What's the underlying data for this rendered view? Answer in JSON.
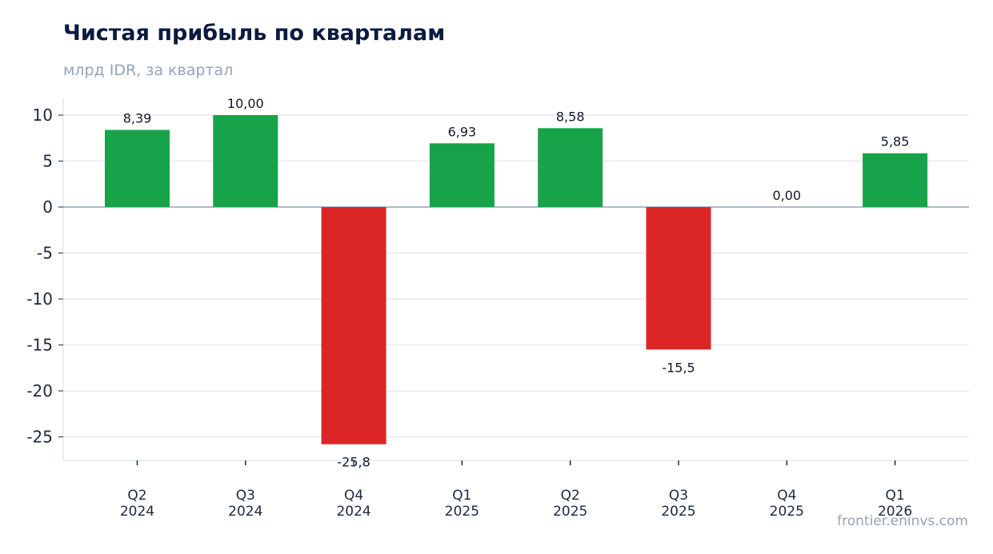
{
  "colors": {
    "positive": "#16a34a",
    "negative": "#dc2626",
    "grid": "#e5e7eb",
    "zero_line": "#94a3b8"
  },
  "watermark": "frontier.eninvs.com",
  "chart_data": {
    "type": "bar",
    "title": "Чистая прибыль по кварталам",
    "subtitle": "млрд IDR, за квартал",
    "categories": [
      [
        "Q2",
        "2024"
      ],
      [
        "Q3",
        "2024"
      ],
      [
        "Q4",
        "2024"
      ],
      [
        "Q1",
        "2025"
      ],
      [
        "Q2",
        "2025"
      ],
      [
        "Q3",
        "2025"
      ],
      [
        "Q4",
        "2025"
      ],
      [
        "Q1",
        "2026"
      ]
    ],
    "values": [
      8.39,
      10.0,
      -25.8,
      6.93,
      8.58,
      -15.5,
      0.0,
      5.85
    ],
    "data_labels": [
      "8,39",
      "10,00",
      "-25,8",
      "6,93",
      "8,58",
      "-15,5",
      "0,00",
      "5,85"
    ],
    "yticks": [
      10,
      5,
      0,
      -5,
      -10,
      -15,
      -20,
      -25
    ],
    "ytick_labels": [
      "10",
      "5",
      "0",
      "-5",
      "-10",
      "-15",
      "-20",
      "-25"
    ],
    "ylim": [
      -27.5,
      11.8
    ],
    "grid": true,
    "legend": "none"
  }
}
